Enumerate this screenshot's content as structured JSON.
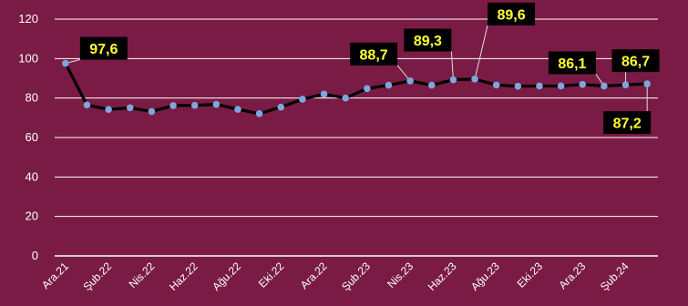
{
  "chart_data": {
    "type": "line",
    "title": "",
    "xlabel": "",
    "ylabel": "",
    "ylim": [
      0,
      120
    ],
    "yticks": [
      "0",
      "20",
      "40",
      "60",
      "80",
      "100",
      "120"
    ],
    "grid": true,
    "x": [
      "Ara.21",
      "Oca.22",
      "Şub.22",
      "Mar.22",
      "Nis.22",
      "May.22",
      "Haz.22",
      "Tem.22",
      "Ağu.22",
      "Eyl.22",
      "Eki.22",
      "Kas.22",
      "Ara.22",
      "Oca.23",
      "Şub.23",
      "Mar.23",
      "Nis.23",
      "May.23",
      "Haz.23",
      "Tem.23",
      "Ağu.23",
      "Eyl.23",
      "Eki.23",
      "Kas.23",
      "Ara.23",
      "Oca.24",
      "Şub.24",
      "Mar.24"
    ],
    "x_tick_labels": [
      "Ara.21",
      "Şub.22",
      "Nis.22",
      "Haz.22",
      "Ağu.22",
      "Eki.22",
      "Ara.22",
      "Şub.23",
      "Nis.23",
      "Haz.23",
      "Ağu.23",
      "Eki.23",
      "Ara.23",
      "Şub.24"
    ],
    "series": [
      {
        "values": [
          97.6,
          76.5,
          74.2,
          75.1,
          73.2,
          76.2,
          76.3,
          76.8,
          74.3,
          72.1,
          75.4,
          79.4,
          82.0,
          80.0,
          84.8,
          86.5,
          88.7,
          86.5,
          89.3,
          89.6,
          86.6,
          86.0,
          86.1,
          86.1,
          86.9,
          86.1,
          86.7,
          87.2
        ]
      }
    ],
    "annotations": [
      {
        "text": "97,6",
        "point_index": 0
      },
      {
        "text": "88,7",
        "point_index": 16
      },
      {
        "text": "89,3",
        "point_index": 18
      },
      {
        "text": "89,6",
        "point_index": 19
      },
      {
        "text": "86,1",
        "point_index": 25
      },
      {
        "text": "86,7",
        "point_index": 26
      },
      {
        "text": "87,2",
        "point_index": 27
      }
    ],
    "colors": {
      "background": "#7a1b45",
      "grid": "#ffffff",
      "line": "#000000",
      "marker": "#7da6dc",
      "callout_bg": "#000000",
      "callout_text": "#ffff33",
      "text": "#ffffff"
    }
  }
}
